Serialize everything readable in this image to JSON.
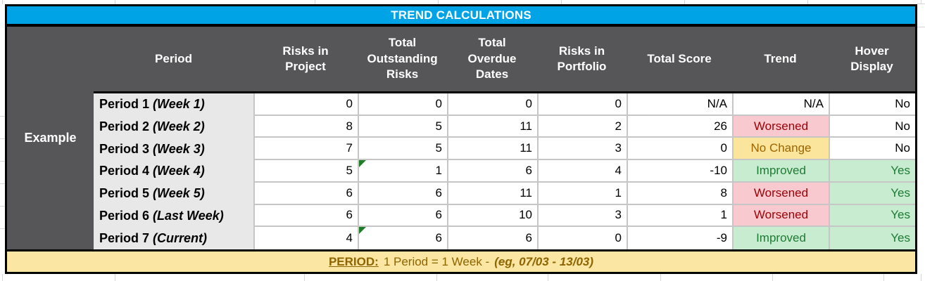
{
  "title": "TREND CALCULATIONS",
  "row_group_label": "Example",
  "columns": [
    "Period",
    "Risks in Project",
    "Total Outstanding Risks",
    "Total Overdue Dates",
    "Risks in Portfolio",
    "Total Score",
    "Trend",
    "Hover Display"
  ],
  "rows": [
    {
      "period": "Period 1",
      "period_note": "(Week 1)",
      "risks_in_project": "0",
      "total_outstanding_risks": "0",
      "total_overdue_dates": "0",
      "risks_in_portfolio": "0",
      "total_score": "N/A",
      "trend": "N/A",
      "trend_status": "none",
      "hover_display": "No",
      "cell_note_marker": false
    },
    {
      "period": "Period 2",
      "period_note": "(Week 2)",
      "risks_in_project": "8",
      "total_outstanding_risks": "5",
      "total_overdue_dates": "11",
      "risks_in_portfolio": "2",
      "total_score": "26",
      "trend": "Worsened",
      "trend_status": "bad",
      "hover_display": "No",
      "cell_note_marker": false
    },
    {
      "period": "Period 3",
      "period_note": "(Week 3)",
      "risks_in_project": "7",
      "total_outstanding_risks": "5",
      "total_overdue_dates": "11",
      "risks_in_portfolio": "3",
      "total_score": "0",
      "trend": "No Change",
      "trend_status": "neutral",
      "hover_display": "No",
      "cell_note_marker": false
    },
    {
      "period": "Period 4",
      "period_note": "(Week 4)",
      "risks_in_project": "5",
      "total_outstanding_risks": "1",
      "total_overdue_dates": "6",
      "risks_in_portfolio": "4",
      "total_score": "-10",
      "trend": "Improved",
      "trend_status": "good",
      "hover_display": "Yes",
      "cell_note_marker": true
    },
    {
      "period": "Period 5",
      "period_note": "(Week 5)",
      "risks_in_project": "6",
      "total_outstanding_risks": "6",
      "total_overdue_dates": "11",
      "risks_in_portfolio": "1",
      "total_score": "8",
      "trend": "Worsened",
      "trend_status": "bad",
      "hover_display": "Yes",
      "cell_note_marker": false
    },
    {
      "period": "Period 6",
      "period_note": "(Last Week)",
      "risks_in_project": "6",
      "total_outstanding_risks": "6",
      "total_overdue_dates": "10",
      "risks_in_portfolio": "3",
      "total_score": "1",
      "trend": "Worsened",
      "trend_status": "bad",
      "hover_display": "Yes",
      "cell_note_marker": false
    },
    {
      "period": "Period 7",
      "period_note": "(Current)",
      "risks_in_project": "4",
      "total_outstanding_risks": "6",
      "total_overdue_dates": "6",
      "risks_in_portfolio": "0",
      "total_score": "-9",
      "trend": "Improved",
      "trend_status": "good",
      "hover_display": "Yes",
      "cell_note_marker": true
    }
  ],
  "footer": {
    "label": "PERIOD:",
    "text": "1 Period = 1 Week -",
    "example": "(eg, 07/03 - 13/03)"
  },
  "colors": {
    "title_bg": "#00A3E6",
    "header_bg": "#565658",
    "label_bg": "#E8E8E8",
    "bad_bg": "#F8C9CE",
    "bad_text": "#9C0006",
    "neutral_bg": "#FBE49B",
    "neutral_text": "#9C6500",
    "good_bg": "#C8ECD0",
    "good_text": "#1E7B34",
    "footer_bg": "#FBE6A3",
    "footer_text": "#8E6500",
    "marker_green": "#1E7D26"
  }
}
